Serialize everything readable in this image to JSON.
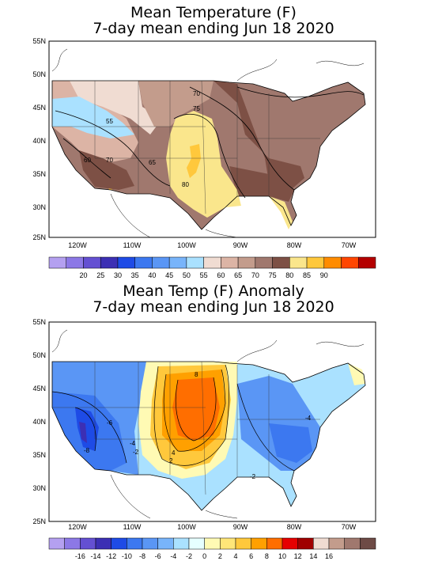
{
  "map1": {
    "title_line1": "Mean Temperature (F)",
    "title_line2": "7-day mean ending Jun 18 2020",
    "lat_labels": [
      "55N",
      "50N",
      "45N",
      "40N",
      "35N",
      "30N",
      "25N"
    ],
    "lon_labels": [
      "120W",
      "110W",
      "100W",
      "90W",
      "80W",
      "70W"
    ],
    "contour_labels": [
      "70",
      "75",
      "55",
      "60",
      "70",
      "65",
      "80"
    ],
    "legend": {
      "colors": [
        "#b4a0f0",
        "#8c78e6",
        "#6450d2",
        "#3c2fb4",
        "#1e4be6",
        "#3c78f0",
        "#5a96f5",
        "#78b4fa",
        "#aae1ff",
        "#f0dcd2",
        "#dcb4a5",
        "#c39c8c",
        "#a0786e",
        "#7d5045",
        "#fae68c",
        "#ffc83c",
        "#ff8c00",
        "#ff4600",
        "#b40000"
      ],
      "labels": [
        "20",
        "25",
        "30",
        "35",
        "40",
        "45",
        "50",
        "55",
        "60",
        "65",
        "70",
        "75",
        "80",
        "85",
        "90"
      ]
    }
  },
  "map2": {
    "title_line1": "Mean Temp (F) Anomaly",
    "title_line2": "7-day mean ending Jun 18 2020",
    "lat_labels": [
      "55N",
      "50N",
      "45N",
      "40N",
      "35N",
      "30N",
      "25N"
    ],
    "lon_labels": [
      "120W",
      "110W",
      "100W",
      "90W",
      "80W",
      "70W"
    ],
    "contour_labels": [
      "8",
      "-6",
      "-8",
      "-4",
      "-2",
      "4",
      "2",
      "-2",
      "-4"
    ],
    "legend": {
      "colors": [
        "#b4a0f0",
        "#8c78e6",
        "#6450d2",
        "#3c2fb4",
        "#1e4be6",
        "#3c78f0",
        "#5a96f5",
        "#78b4fa",
        "#aae1ff",
        "#e6ffff",
        "#fffab4",
        "#ffe678",
        "#ffc83c",
        "#ffa000",
        "#ff6e00",
        "#e60000",
        "#a00000",
        "#f0dcd2",
        "#c39c8c",
        "#a0786e",
        "#6e4b46"
      ],
      "labels": [
        "-16",
        "-14",
        "-12",
        "-10",
        "-8",
        "-6",
        "-4",
        "-2",
        "0",
        "2",
        "4",
        "6",
        "8",
        "10",
        "12",
        "14",
        "16"
      ]
    }
  }
}
